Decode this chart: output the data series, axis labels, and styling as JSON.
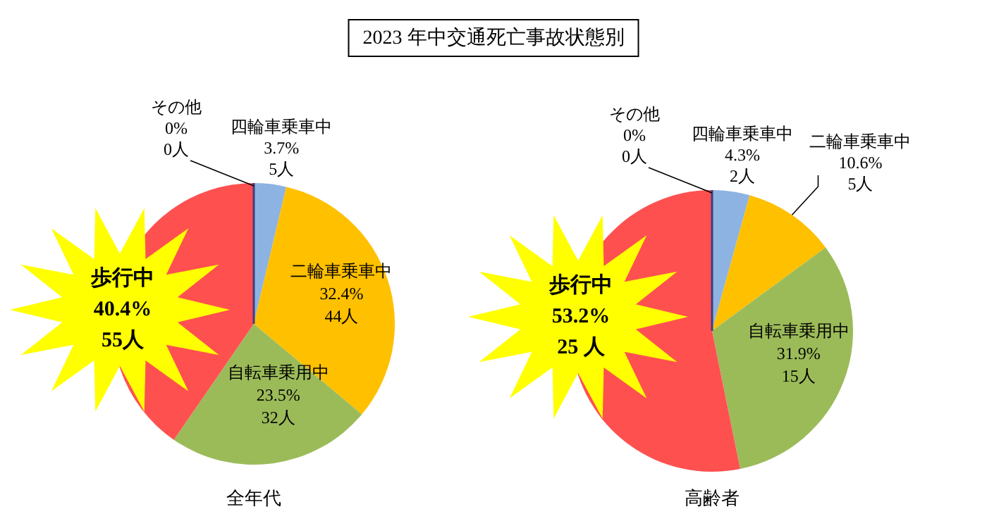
{
  "chart_data": [
    {
      "type": "pie",
      "title": "2023 年中交通死亡事故状態別",
      "xlabel": "全年代",
      "categories": [
        "四輪車乗車中",
        "二輪車乗車中",
        "自転車乗用中",
        "歩行中",
        "その他"
      ],
      "values": [
        3.7,
        32.4,
        23.5,
        40.4,
        0
      ],
      "colors": [
        "#8db3e2",
        "#ffc000",
        "#9bbb59",
        "#ff5050",
        "#3f3f7f"
      ],
      "value_labels": [
        "3.7%\n5人",
        "32.4%\n44人",
        "23.5%\n32人",
        "40.4%\n55人",
        "0%\n0人"
      ]
    },
    {
      "type": "pie",
      "xlabel": "高齢者",
      "categories": [
        "四輪車乗車中",
        "二輪車乗車中",
        "自転車乗用中",
        "歩行中",
        "その他"
      ],
      "values": [
        4.3,
        10.6,
        31.9,
        53.2,
        0
      ],
      "colors": [
        "#8db3e2",
        "#ffc000",
        "#9bbb59",
        "#ff5050",
        "#3f3f7f"
      ],
      "value_labels": [
        "4.3%\n2人",
        "10.6%\n5人",
        "31.9%\n15人",
        "53.2%\n25 人",
        "0%\n0人"
      ]
    }
  ]
}
